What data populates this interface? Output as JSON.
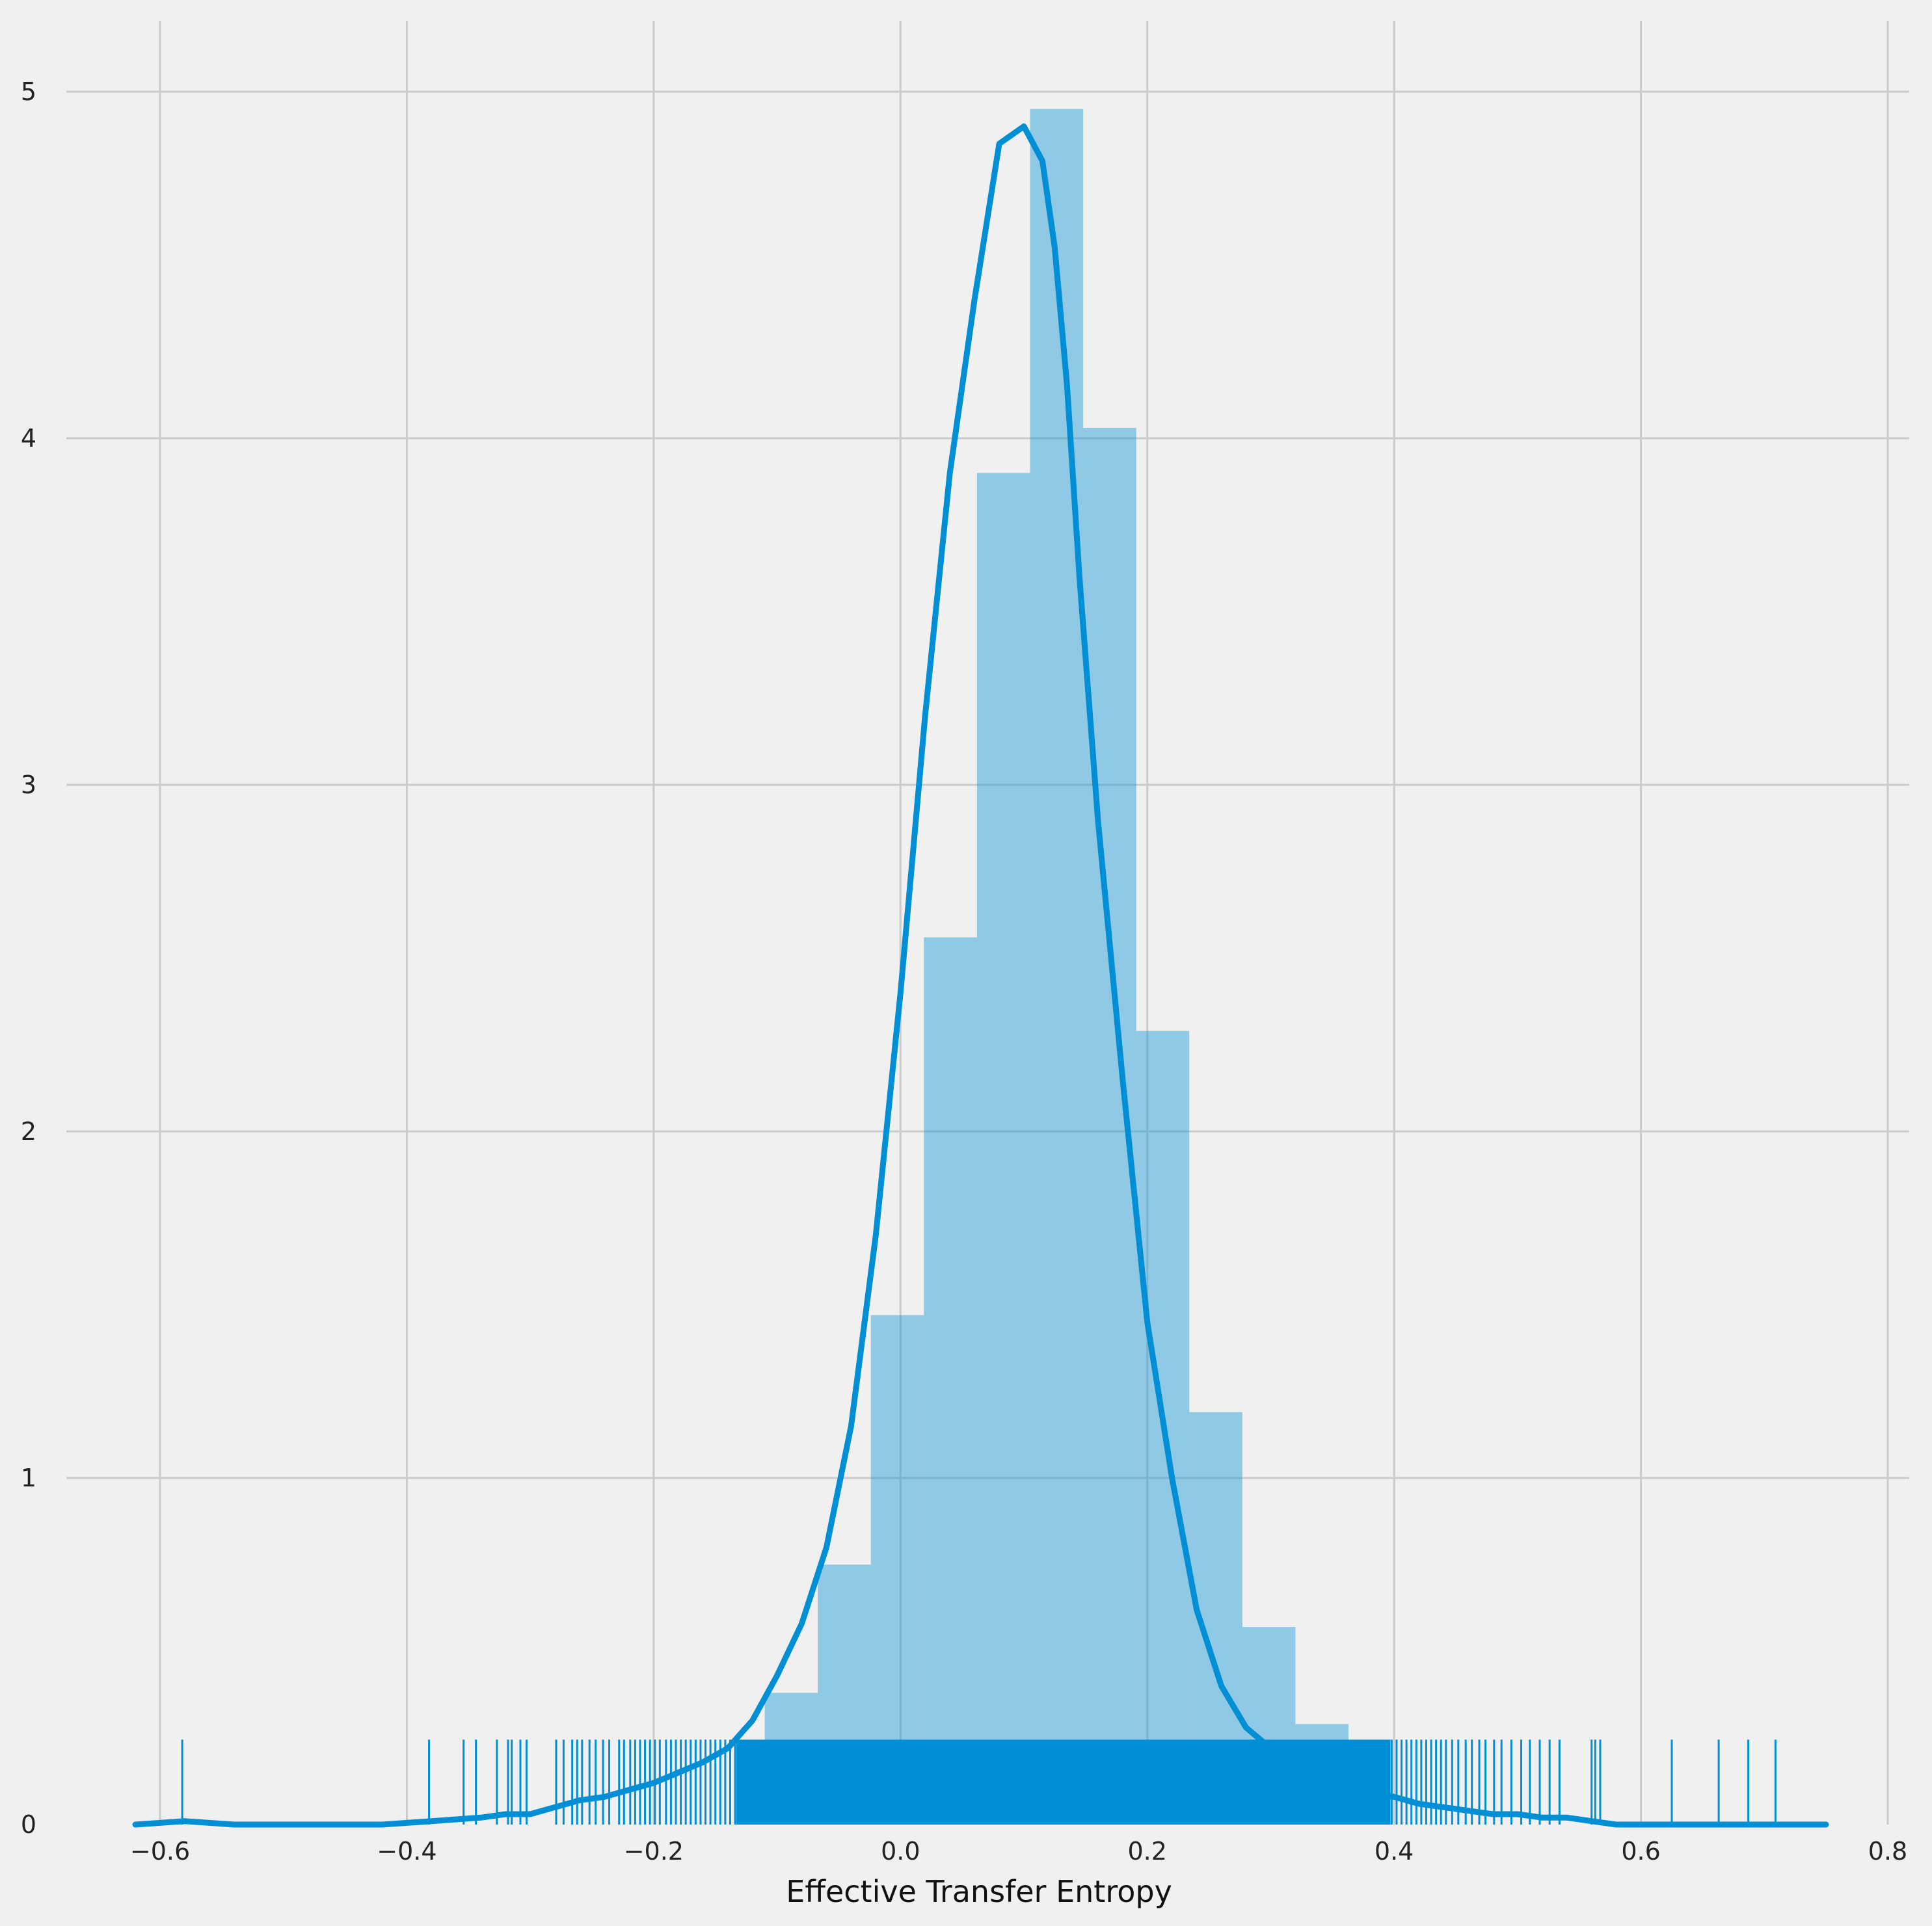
{
  "chart_data": {
    "type": "histogram",
    "title": "",
    "xlabel": "Effective Transfer Entropy",
    "ylabel": "",
    "xlim": [
      -0.63,
      0.78
    ],
    "ylim": [
      0,
      5.25
    ],
    "x_ticks": [
      -0.6,
      -0.4,
      -0.2,
      0.0,
      0.2,
      0.4,
      0.6,
      0.8
    ],
    "x_tick_labels": [
      "−0.6",
      "−0.4",
      "−0.2",
      "0.0",
      "0.2",
      "0.4",
      "0.6",
      "0.8"
    ],
    "y_ticks": [
      0,
      1,
      2,
      3,
      4,
      5
    ],
    "y_tick_labels": [
      "0",
      "1",
      "2",
      "3",
      "4",
      "5"
    ],
    "grid": true,
    "colors": {
      "background": "#f0f0f0",
      "grid": "#cbcbcb",
      "bar": "#008fd5",
      "kde": "#008fd5",
      "rug": "#008fd5"
    },
    "histogram": {
      "bin_edges": [
        -0.11,
        -0.067,
        -0.024,
        0.019,
        0.062,
        0.105,
        0.148,
        0.191,
        0.234,
        0.277,
        0.32,
        0.363
      ],
      "density": [
        0.38,
        0.75,
        1.47,
        2.56,
        3.9,
        4.95,
        4.03,
        2.29,
        1.19,
        0.57,
        0.29
      ]
    },
    "kde": {
      "x": [
        -0.62,
        -0.58,
        -0.54,
        -0.5,
        -0.46,
        -0.42,
        -0.38,
        -0.34,
        -0.32,
        -0.3,
        -0.28,
        -0.26,
        -0.24,
        -0.22,
        -0.2,
        -0.18,
        -0.16,
        -0.14,
        -0.12,
        -0.1,
        -0.08,
        -0.06,
        -0.04,
        -0.02,
        0.0,
        0.02,
        0.04,
        0.06,
        0.08,
        0.1,
        0.115,
        0.125,
        0.135,
        0.145,
        0.16,
        0.18,
        0.2,
        0.22,
        0.24,
        0.26,
        0.28,
        0.3,
        0.32,
        0.34,
        0.36,
        0.38,
        0.4,
        0.42,
        0.44,
        0.46,
        0.48,
        0.5,
        0.52,
        0.54,
        0.56,
        0.58,
        0.6,
        0.64,
        0.68,
        0.72,
        0.75
      ],
      "y": [
        0.0,
        0.01,
        0.0,
        0.0,
        0.0,
        0.0,
        0.01,
        0.02,
        0.03,
        0.03,
        0.05,
        0.07,
        0.08,
        0.1,
        0.12,
        0.15,
        0.18,
        0.22,
        0.3,
        0.43,
        0.58,
        0.8,
        1.15,
        1.7,
        2.4,
        3.2,
        3.9,
        4.4,
        4.85,
        4.9,
        4.8,
        4.55,
        4.15,
        3.6,
        2.9,
        2.15,
        1.45,
        1.0,
        0.62,
        0.4,
        0.28,
        0.22,
        0.18,
        0.14,
        0.12,
        0.1,
        0.08,
        0.06,
        0.05,
        0.04,
        0.03,
        0.03,
        0.02,
        0.02,
        0.01,
        0.0,
        0.0,
        0.0,
        0.0,
        0.0,
        0.0
      ],
      "line_width": 9
    },
    "rug": {
      "height": 0.245,
      "values": [
        -0.582,
        -0.382,
        -0.354,
        -0.344,
        -0.327,
        -0.318,
        -0.315,
        -0.308,
        -0.303,
        -0.279,
        -0.273,
        -0.266,
        -0.262,
        -0.258,
        -0.252,
        -0.247,
        -0.241,
        -0.236,
        -0.228,
        -0.224,
        -0.219,
        -0.215,
        -0.211,
        -0.207,
        -0.203,
        -0.199,
        -0.195,
        -0.19,
        -0.186,
        -0.182,
        -0.178,
        -0.174,
        -0.17,
        -0.166,
        -0.162,
        -0.158,
        -0.154,
        -0.15,
        -0.146,
        -0.142,
        -0.138,
        -0.134,
        0.398,
        0.402,
        0.406,
        0.41,
        0.414,
        0.418,
        0.422,
        0.426,
        0.43,
        0.434,
        0.438,
        0.442,
        0.447,
        0.452,
        0.458,
        0.463,
        0.469,
        0.474,
        0.481,
        0.487,
        0.495,
        0.503,
        0.51,
        0.518,
        0.526,
        0.534,
        0.56,
        0.563,
        0.567,
        0.625,
        0.663,
        0.687,
        0.709
      ],
      "dense_range": [
        -0.133,
        0.397
      ]
    }
  }
}
